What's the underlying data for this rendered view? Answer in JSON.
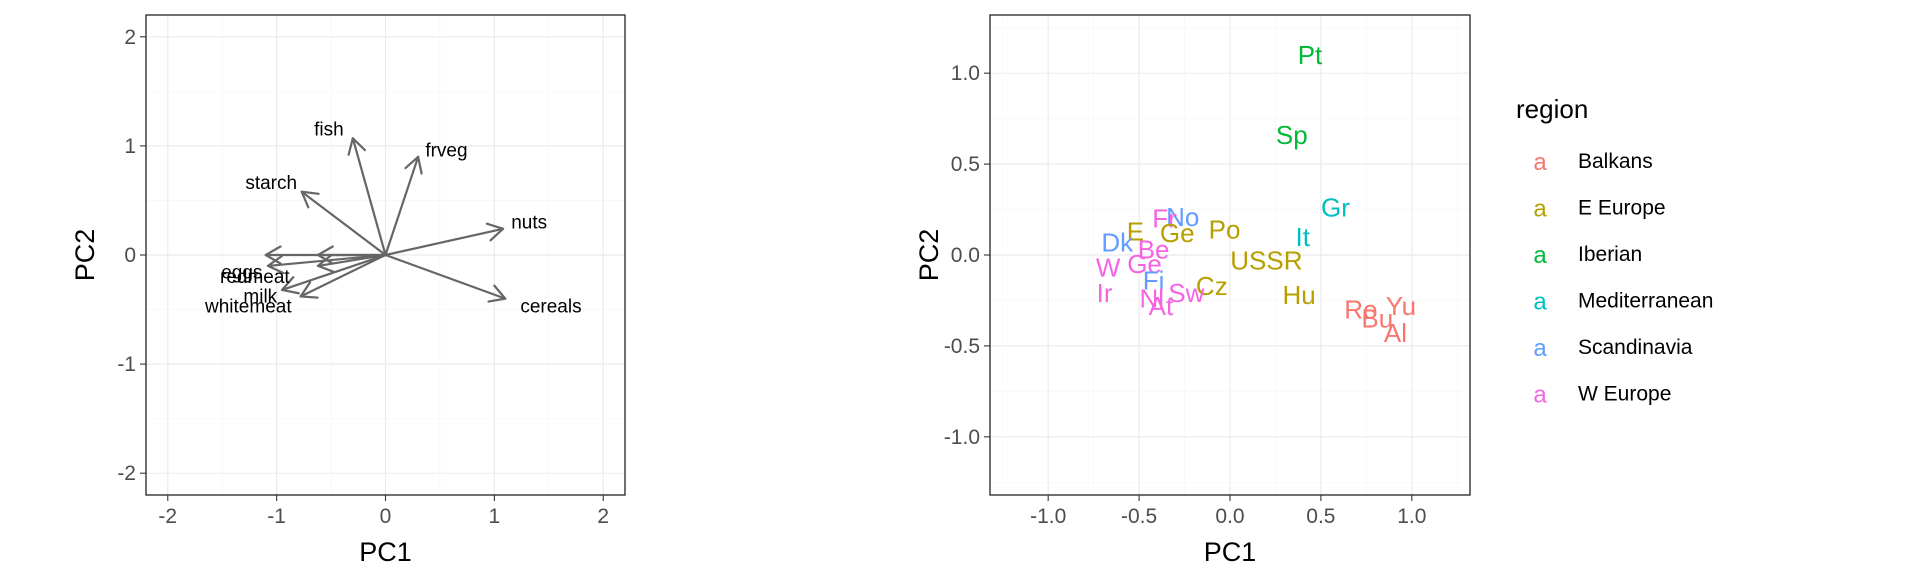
{
  "chart_data": [
    {
      "type": "biplot-loadings",
      "title": "",
      "xlabel": "PC1",
      "ylabel": "PC2",
      "xlim": [
        -2.2,
        2.2
      ],
      "ylim": [
        -2.2,
        2.2
      ],
      "xticks": [
        -2,
        -1,
        0,
        1,
        2
      ],
      "yticks": [
        -2,
        -1,
        0,
        1,
        2
      ],
      "xtick_labels": [
        "-2",
        "-1",
        "0",
        "1",
        "2"
      ],
      "ytick_labels": [
        "-2",
        "-1",
        "0",
        "1",
        "2"
      ],
      "grid": true,
      "arrows": [
        {
          "label": "fish",
          "x": -0.3,
          "y": 1.07,
          "lx": -0.52,
          "ly": 1.15
        },
        {
          "label": "frveg",
          "x": 0.3,
          "y": 0.9,
          "lx": 0.56,
          "ly": 0.96
        },
        {
          "label": "starch",
          "x": -0.77,
          "y": 0.58,
          "lx": -1.05,
          "ly": 0.66
        },
        {
          "label": "nuts",
          "x": 1.08,
          "y": 0.24,
          "lx": 1.32,
          "ly": 0.3
        },
        {
          "label": "eggs",
          "x": -1.08,
          "y": -0.1,
          "lx": -1.32,
          "ly": -0.16
        },
        {
          "label": "redmeat",
          "x": -0.62,
          "y": -0.1,
          "lx": -1.2,
          "ly": -0.2
        },
        {
          "label": "milk",
          "x": -0.95,
          "y": -0.32,
          "lx": -1.15,
          "ly": -0.38
        },
        {
          "label": "whitemeat",
          "x": -0.78,
          "y": -0.38,
          "lx": -1.26,
          "ly": -0.47
        },
        {
          "label": "cereals",
          "x": 1.1,
          "y": -0.4,
          "lx": 1.52,
          "ly": -0.47
        },
        {
          "label": "",
          "x": -1.1,
          "y": 0.0,
          "lx": 0,
          "ly": 0
        },
        {
          "label": "",
          "x": -0.62,
          "y": 0.0,
          "lx": 0,
          "ly": 0
        }
      ]
    },
    {
      "type": "scatter-text",
      "title": "",
      "xlabel": "PC1",
      "ylabel": "PC2",
      "xlim": [
        -1.32,
        1.32
      ],
      "ylim": [
        -1.32,
        1.32
      ],
      "xticks": [
        -1.0,
        -0.5,
        0.0,
        0.5,
        1.0
      ],
      "yticks": [
        -1.0,
        -0.5,
        0.0,
        0.5,
        1.0
      ],
      "xtick_labels": [
        "-1.0",
        "-0.5",
        "0.0",
        "0.5",
        "1.0"
      ],
      "ytick_labels": [
        "-1.0",
        "-0.5",
        "0.0",
        "0.5",
        "1.0"
      ],
      "grid": true,
      "legend": {
        "title": "region",
        "placement": "right",
        "key_glyph": "a",
        "entries": [
          {
            "name": "Balkans",
            "color": "#F8766D"
          },
          {
            "name": "E Europe",
            "color": "#B79F00"
          },
          {
            "name": "Iberian",
            "color": "#00BA38"
          },
          {
            "name": "Mediterranean",
            "color": "#00BFC4"
          },
          {
            "name": "Scandinavia",
            "color": "#619CFF"
          },
          {
            "name": "W Europe",
            "color": "#F564E3"
          }
        ]
      },
      "points": [
        {
          "label": "Pt",
          "x": 0.44,
          "y": 1.1,
          "region": "Iberian"
        },
        {
          "label": "Sp",
          "x": 0.34,
          "y": 0.66,
          "region": "Iberian"
        },
        {
          "label": "Gr",
          "x": 0.58,
          "y": 0.26,
          "region": "Mediterranean"
        },
        {
          "label": "It",
          "x": 0.4,
          "y": 0.1,
          "region": "Mediterranean"
        },
        {
          "label": "No",
          "x": -0.26,
          "y": 0.21,
          "region": "Scandinavia"
        },
        {
          "label": "Fr",
          "x": -0.36,
          "y": 0.2,
          "region": "W Europe"
        },
        {
          "label": "Po",
          "x": -0.03,
          "y": 0.14,
          "region": "E Europe"
        },
        {
          "label": "E",
          "x": -0.52,
          "y": 0.13,
          "region": "E Europe"
        },
        {
          "label": "Ge",
          "x": -0.29,
          "y": 0.12,
          "region": "E Europe"
        },
        {
          "label": "Dk",
          "x": -0.62,
          "y": 0.07,
          "region": "Scandinavia"
        },
        {
          "label": "Be",
          "x": -0.42,
          "y": 0.03,
          "region": "W Europe"
        },
        {
          "label": "USSR",
          "x": 0.2,
          "y": -0.03,
          "region": "E Europe"
        },
        {
          "label": "W",
          "x": -0.67,
          "y": -0.07,
          "region": "W Europe"
        },
        {
          "label": "Ge",
          "x": -0.47,
          "y": -0.05,
          "region": "W Europe"
        },
        {
          "label": "Ir",
          "x": -0.69,
          "y": -0.21,
          "region": "W Europe"
        },
        {
          "label": "Fi",
          "x": -0.42,
          "y": -0.14,
          "region": "Scandinavia"
        },
        {
          "label": "Cz",
          "x": -0.1,
          "y": -0.17,
          "region": "E Europe"
        },
        {
          "label": "Sw",
          "x": -0.24,
          "y": -0.21,
          "region": "W Europe"
        },
        {
          "label": "Nl",
          "x": -0.43,
          "y": -0.24,
          "region": "W Europe"
        },
        {
          "label": "Hu",
          "x": 0.38,
          "y": -0.22,
          "region": "E Europe"
        },
        {
          "label": "At",
          "x": -0.38,
          "y": -0.28,
          "region": "W Europe"
        },
        {
          "label": "Ro",
          "x": 0.72,
          "y": -0.3,
          "region": "Balkans"
        },
        {
          "label": "Yu",
          "x": 0.94,
          "y": -0.28,
          "region": "Balkans"
        },
        {
          "label": "Bu",
          "x": 0.81,
          "y": -0.35,
          "region": "Balkans"
        },
        {
          "label": "Al",
          "x": 0.91,
          "y": -0.43,
          "region": "Balkans"
        }
      ]
    }
  ]
}
